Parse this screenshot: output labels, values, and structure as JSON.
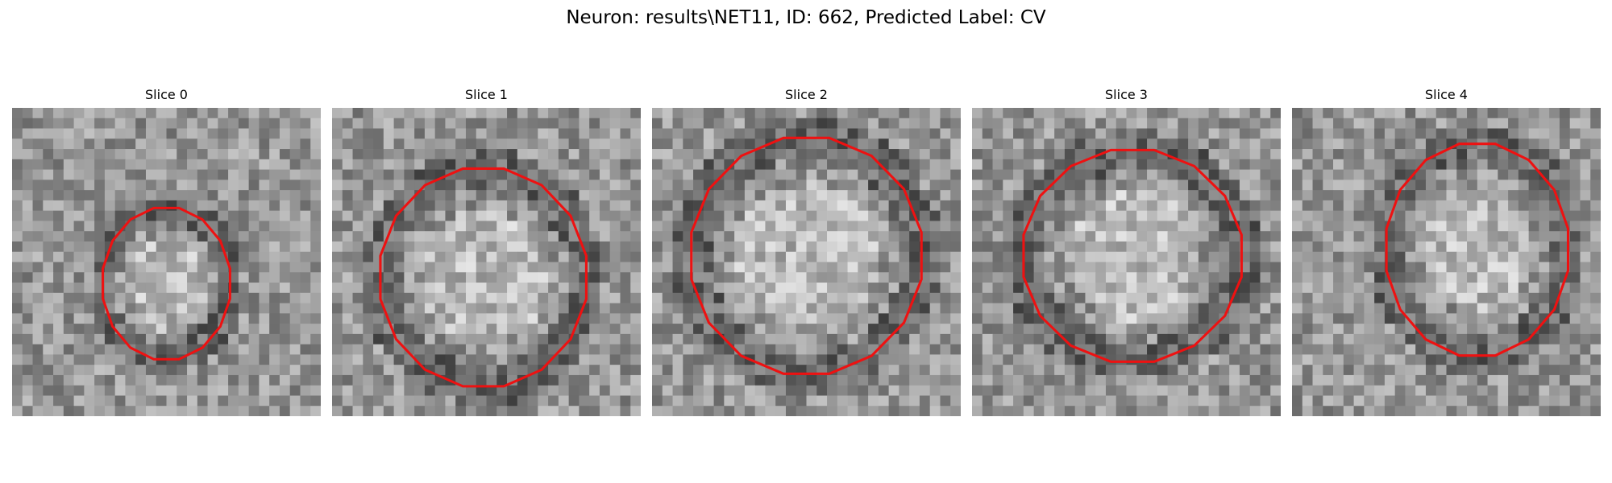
{
  "figure": {
    "title": "Neuron: results\\NET11, ID: 662, Predicted Label: CV",
    "contour_color": "#ee1111",
    "panels": [
      {
        "title": "Slice 0",
        "contour": {
          "center": [
            0.5,
            0.57
          ],
          "radius": [
            0.21,
            0.25
          ]
        }
      },
      {
        "title": "Slice 1",
        "contour": {
          "center": [
            0.49,
            0.55
          ],
          "radius": [
            0.34,
            0.36
          ]
        }
      },
      {
        "title": "Slice 2",
        "contour": {
          "center": [
            0.5,
            0.48
          ],
          "radius": [
            0.38,
            0.39
          ]
        }
      },
      {
        "title": "Slice 3",
        "contour": {
          "center": [
            0.52,
            0.48
          ],
          "radius": [
            0.36,
            0.35
          ]
        }
      },
      {
        "title": "Slice 4",
        "contour": {
          "center": [
            0.6,
            0.46
          ],
          "radius": [
            0.3,
            0.35
          ]
        }
      }
    ]
  }
}
